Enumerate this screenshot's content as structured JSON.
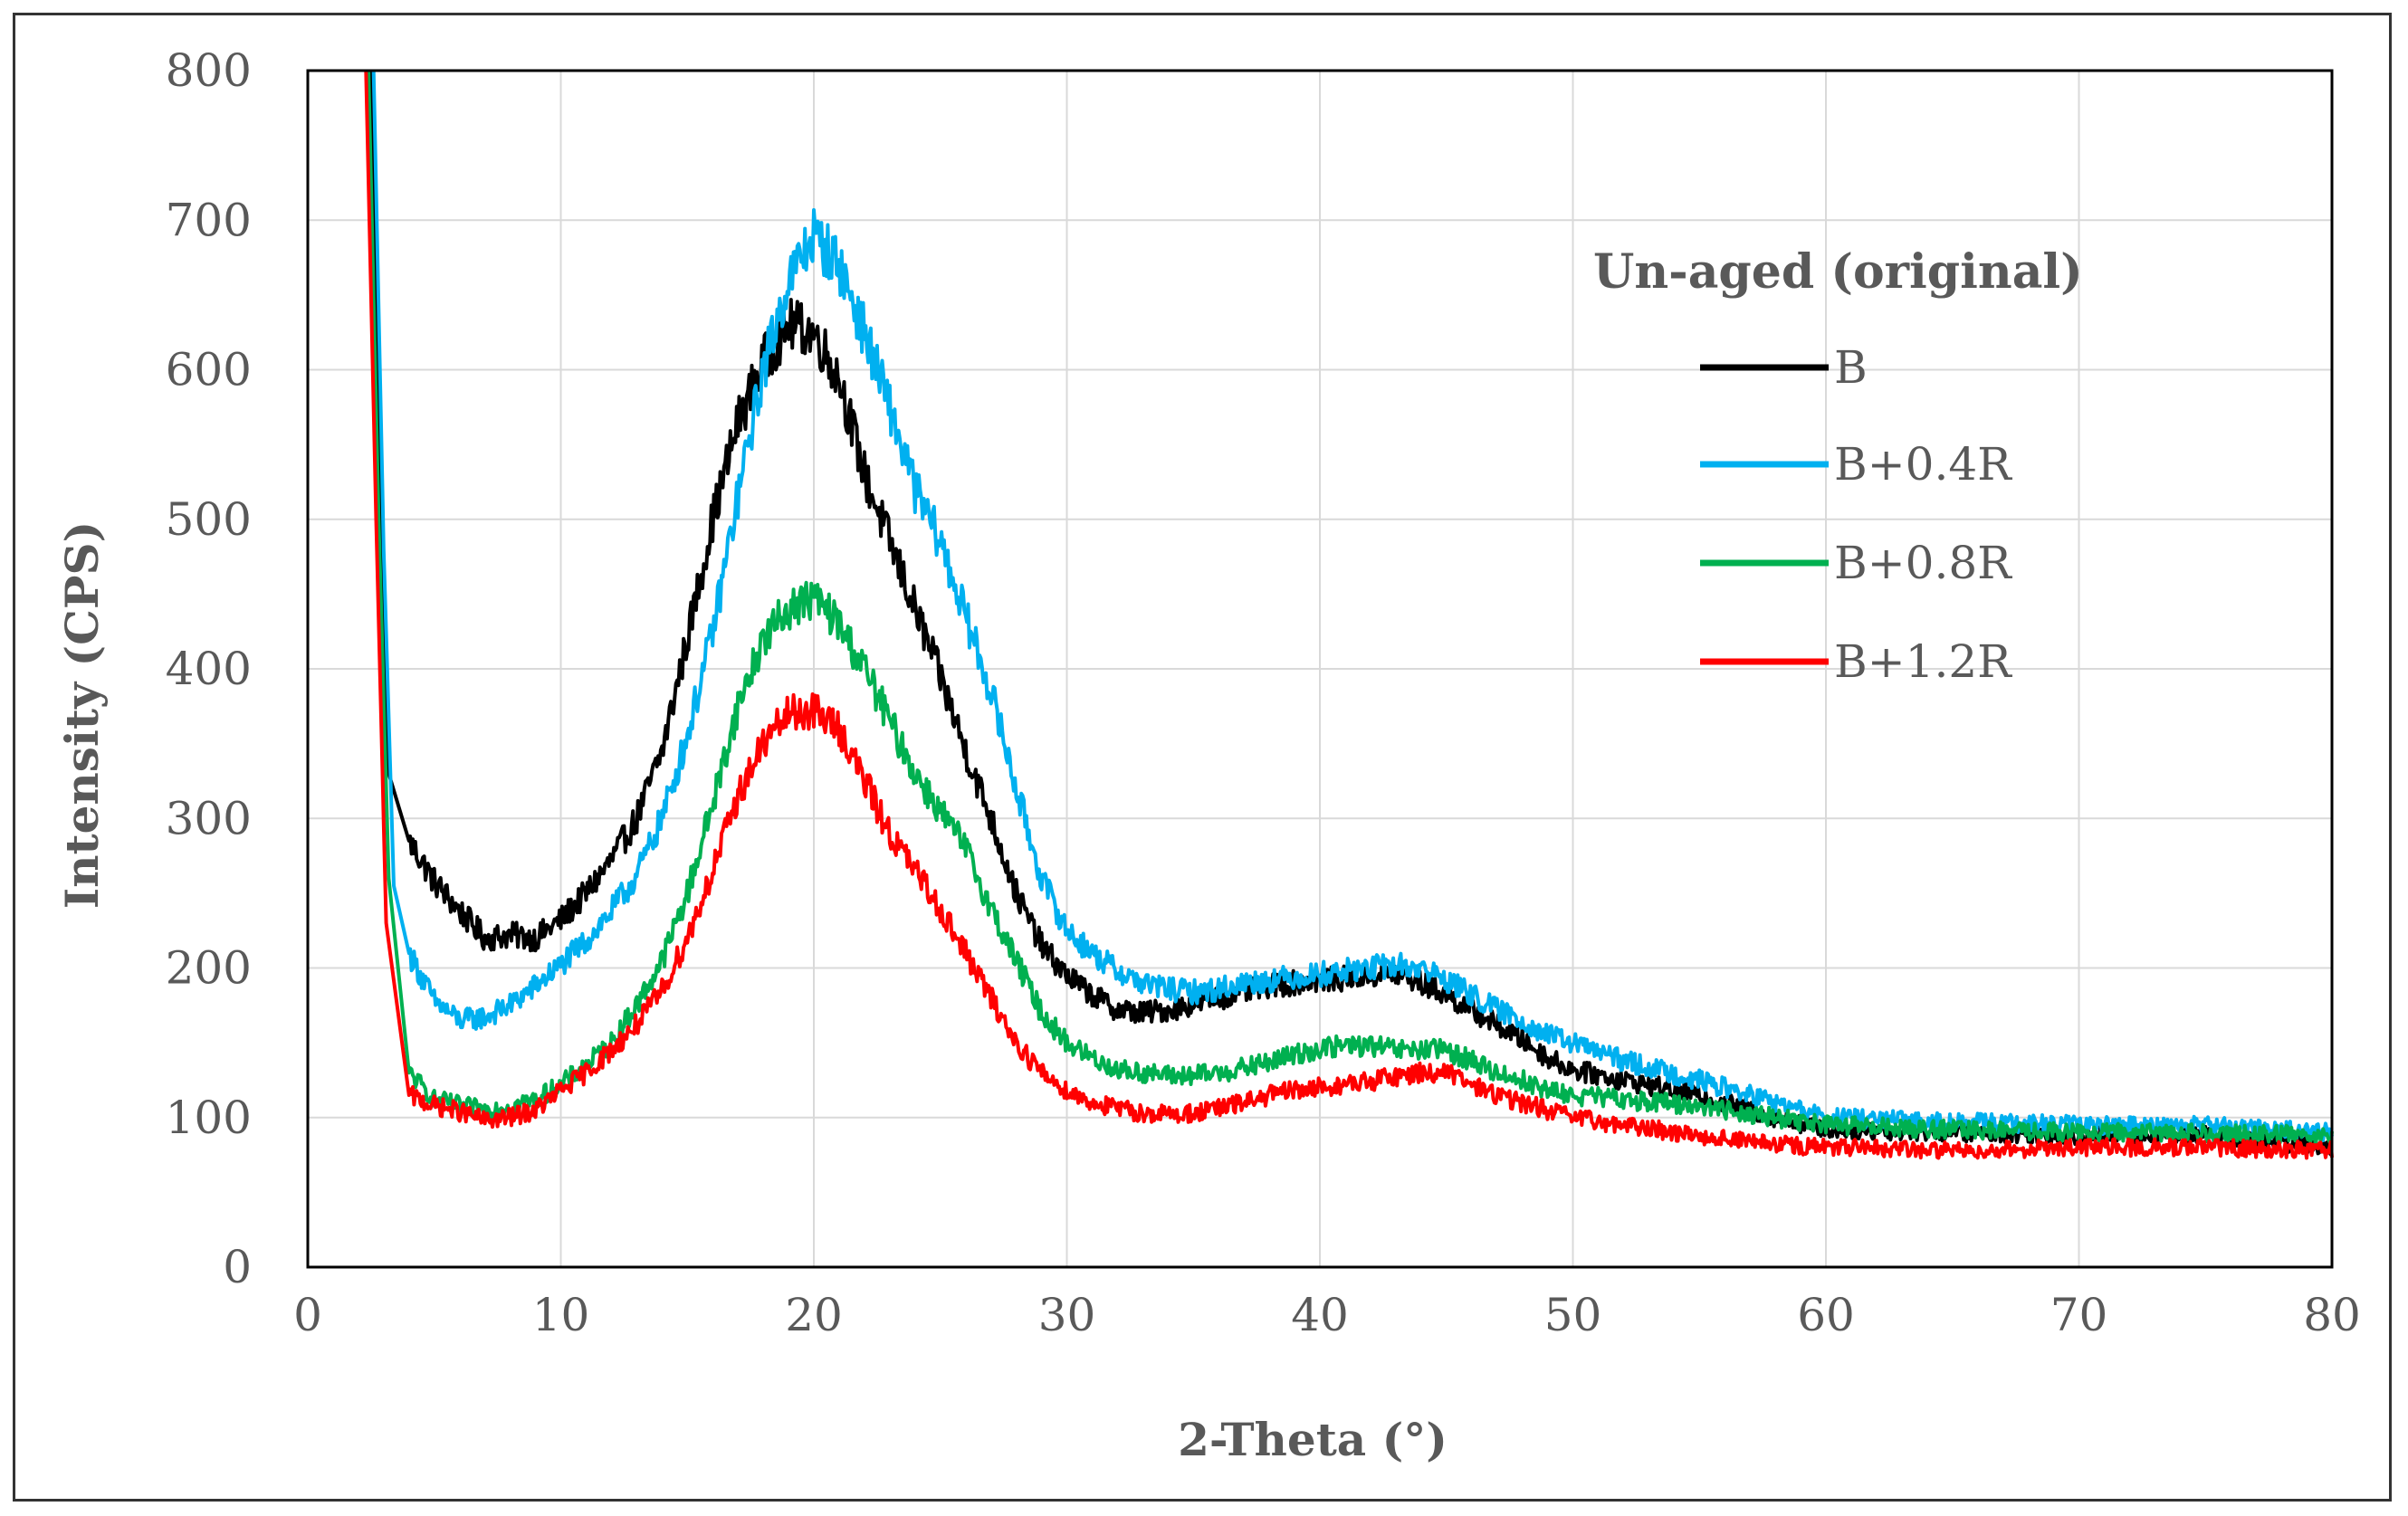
{
  "chart_data": {
    "type": "line",
    "title": "",
    "xlabel": "2-Theta (°)",
    "ylabel": "Intensity (CPS)",
    "xlim": [
      0,
      80
    ],
    "ylim": [
      0,
      800
    ],
    "xticks": [
      0,
      10,
      20,
      30,
      40,
      50,
      60,
      70,
      80
    ],
    "yticks": [
      0,
      100,
      200,
      300,
      400,
      500,
      600,
      700,
      800
    ],
    "grid": true,
    "legend": {
      "title": "Un-aged (original)",
      "placement": "right"
    },
    "series": [
      {
        "name": "B",
        "color": "#000000",
        "points": [
          [
            2.5,
            800
          ],
          [
            2.9,
            500
          ],
          [
            3.2,
            330
          ],
          [
            4,
            285
          ],
          [
            5,
            258
          ],
          [
            6,
            238
          ],
          [
            7,
            220
          ],
          [
            8,
            222
          ],
          [
            9,
            220
          ],
          [
            10,
            232
          ],
          [
            11,
            250
          ],
          [
            12,
            272
          ],
          [
            13,
            300
          ],
          [
            14,
            345
          ],
          [
            15,
            420
          ],
          [
            16,
            500
          ],
          [
            17,
            565
          ],
          [
            18,
            605
          ],
          [
            19,
            630
          ],
          [
            20,
            625
          ],
          [
            21,
            595
          ],
          [
            22,
            530
          ],
          [
            23,
            485
          ],
          [
            24,
            440
          ],
          [
            25,
            395
          ],
          [
            26,
            345
          ],
          [
            27,
            300
          ],
          [
            28,
            250
          ],
          [
            29,
            215
          ],
          [
            30,
            195
          ],
          [
            31,
            182
          ],
          [
            32,
            172
          ],
          [
            33,
            170
          ],
          [
            34,
            172
          ],
          [
            35,
            176
          ],
          [
            36,
            180
          ],
          [
            37,
            184
          ],
          [
            38,
            188
          ],
          [
            39,
            190
          ],
          [
            40,
            192
          ],
          [
            41,
            193
          ],
          [
            42,
            195
          ],
          [
            43,
            196
          ],
          [
            44,
            190
          ],
          [
            45,
            182
          ],
          [
            46,
            172
          ],
          [
            47,
            162
          ],
          [
            48,
            152
          ],
          [
            49,
            140
          ],
          [
            50,
            132
          ],
          [
            52,
            125
          ],
          [
            55,
            115
          ],
          [
            58,
            100
          ],
          [
            60,
            92
          ],
          [
            65,
            90
          ],
          [
            70,
            88
          ],
          [
            75,
            88
          ],
          [
            80,
            80
          ]
        ]
      },
      {
        "name": "B+0.4R",
        "color": "#00b0f0",
        "points": [
          [
            2.6,
            800
          ],
          [
            3,
            480
          ],
          [
            3.4,
            255
          ],
          [
            4,
            210
          ],
          [
            5,
            178
          ],
          [
            6,
            165
          ],
          [
            7,
            167
          ],
          [
            8,
            175
          ],
          [
            9,
            188
          ],
          [
            10,
            202
          ],
          [
            11,
            218
          ],
          [
            12,
            238
          ],
          [
            13,
            262
          ],
          [
            14,
            300
          ],
          [
            15,
            355
          ],
          [
            16,
            425
          ],
          [
            17,
            515
          ],
          [
            18,
            600
          ],
          [
            19,
            660
          ],
          [
            20,
            690
          ],
          [
            21,
            670
          ],
          [
            22,
            625
          ],
          [
            23,
            575
          ],
          [
            24,
            520
          ],
          [
            25,
            485
          ],
          [
            26,
            435
          ],
          [
            27,
            385
          ],
          [
            28,
            320
          ],
          [
            29,
            260
          ],
          [
            30,
            225
          ],
          [
            31,
            210
          ],
          [
            32,
            198
          ],
          [
            33,
            190
          ],
          [
            34,
            186
          ],
          [
            35,
            184
          ],
          [
            36,
            186
          ],
          [
            37,
            190
          ],
          [
            38,
            192
          ],
          [
            39,
            194
          ],
          [
            40,
            196
          ],
          [
            41,
            198
          ],
          [
            42,
            200
          ],
          [
            43,
            202
          ],
          [
            44,
            200
          ],
          [
            45,
            192
          ],
          [
            46,
            182
          ],
          [
            47,
            172
          ],
          [
            48,
            165
          ],
          [
            49,
            155
          ],
          [
            50,
            150
          ],
          [
            52,
            138
          ],
          [
            55,
            125
          ],
          [
            58,
            110
          ],
          [
            60,
            100
          ],
          [
            65,
            97
          ],
          [
            70,
            95
          ],
          [
            75,
            95
          ],
          [
            80,
            90
          ]
        ]
      },
      {
        "name": "B+0.8R",
        "color": "#00b050",
        "points": [
          [
            2.4,
            800
          ],
          [
            2.8,
            500
          ],
          [
            3.2,
            260
          ],
          [
            4,
            130
          ],
          [
            5,
            112
          ],
          [
            6,
            108
          ],
          [
            7,
            105
          ],
          [
            8,
            108
          ],
          [
            9,
            112
          ],
          [
            10,
            122
          ],
          [
            11,
            135
          ],
          [
            12,
            150
          ],
          [
            13,
            175
          ],
          [
            14,
            205
          ],
          [
            15,
            250
          ],
          [
            16,
            310
          ],
          [
            17,
            375
          ],
          [
            18,
            420
          ],
          [
            19,
            440
          ],
          [
            20,
            448
          ],
          [
            21,
            430
          ],
          [
            22,
            400
          ],
          [
            23,
            365
          ],
          [
            24,
            330
          ],
          [
            25,
            305
          ],
          [
            26,
            280
          ],
          [
            27,
            240
          ],
          [
            28,
            205
          ],
          [
            29,
            170
          ],
          [
            30,
            150
          ],
          [
            31,
            140
          ],
          [
            32,
            132
          ],
          [
            33,
            130
          ],
          [
            34,
            128
          ],
          [
            35,
            128
          ],
          [
            36,
            130
          ],
          [
            37,
            133
          ],
          [
            38,
            137
          ],
          [
            39,
            142
          ],
          [
            40,
            146
          ],
          [
            41,
            148
          ],
          [
            42,
            148
          ],
          [
            43,
            145
          ],
          [
            44,
            145
          ],
          [
            45,
            145
          ],
          [
            46,
            138
          ],
          [
            47,
            130
          ],
          [
            48,
            125
          ],
          [
            49,
            118
          ],
          [
            50,
            115
          ],
          [
            52,
            112
          ],
          [
            55,
            108
          ],
          [
            58,
            100
          ],
          [
            60,
            95
          ],
          [
            65,
            92
          ],
          [
            70,
            90
          ],
          [
            75,
            90
          ],
          [
            80,
            88
          ]
        ]
      },
      {
        "name": "B+1.2R",
        "color": "#ff0000",
        "points": [
          [
            2.3,
            800
          ],
          [
            2.7,
            500
          ],
          [
            3.1,
            230
          ],
          [
            4,
            115
          ],
          [
            5,
            108
          ],
          [
            6,
            104
          ],
          [
            7,
            98
          ],
          [
            8,
            100
          ],
          [
            9,
            105
          ],
          [
            10,
            118
          ],
          [
            11,
            130
          ],
          [
            12,
            145
          ],
          [
            13,
            162
          ],
          [
            14,
            185
          ],
          [
            15,
            220
          ],
          [
            16,
            265
          ],
          [
            17,
            315
          ],
          [
            18,
            350
          ],
          [
            19,
            370
          ],
          [
            20,
            372
          ],
          [
            21,
            360
          ],
          [
            22,
            325
          ],
          [
            23,
            290
          ],
          [
            24,
            265
          ],
          [
            25,
            240
          ],
          [
            26,
            210
          ],
          [
            27,
            180
          ],
          [
            28,
            150
          ],
          [
            29,
            130
          ],
          [
            30,
            118
          ],
          [
            31,
            110
          ],
          [
            32,
            106
          ],
          [
            33,
            103
          ],
          [
            34,
            102
          ],
          [
            35,
            103
          ],
          [
            36,
            106
          ],
          [
            37,
            110
          ],
          [
            38,
            115
          ],
          [
            39,
            118
          ],
          [
            40,
            120
          ],
          [
            41,
            122
          ],
          [
            42,
            124
          ],
          [
            43,
            128
          ],
          [
            44,
            130
          ],
          [
            45,
            130
          ],
          [
            46,
            122
          ],
          [
            47,
            115
          ],
          [
            48,
            110
          ],
          [
            49,
            105
          ],
          [
            50,
            100
          ],
          [
            52,
            95
          ],
          [
            55,
            88
          ],
          [
            58,
            82
          ],
          [
            60,
            80
          ],
          [
            65,
            78
          ],
          [
            70,
            80
          ],
          [
            75,
            80
          ],
          [
            80,
            78
          ]
        ]
      }
    ]
  }
}
